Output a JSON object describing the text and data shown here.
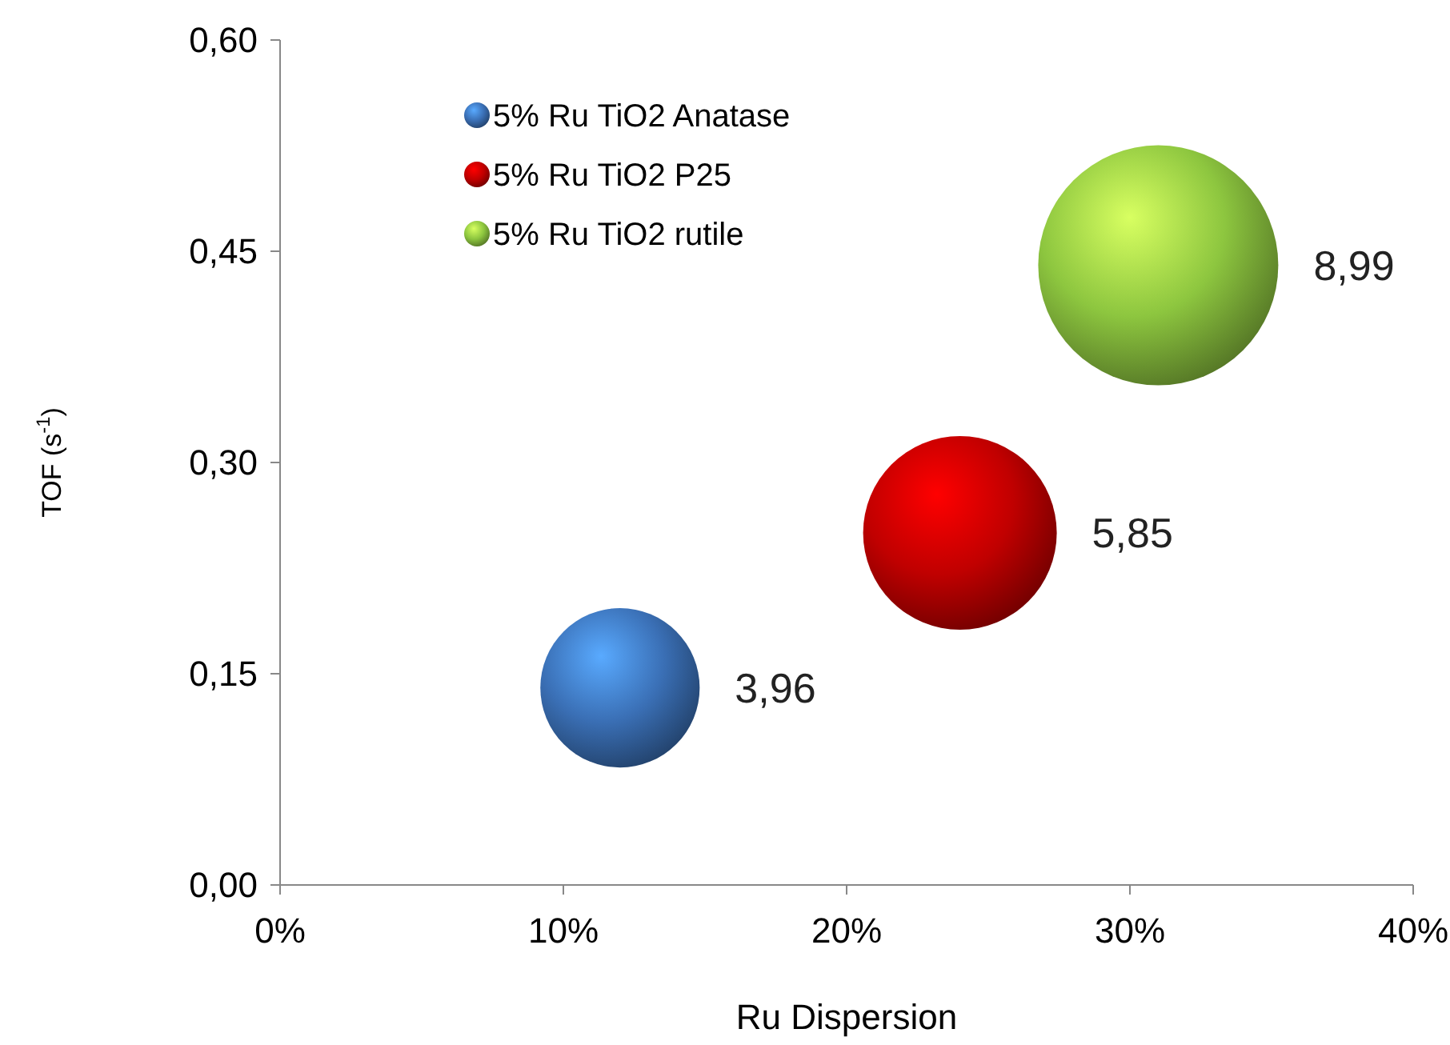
{
  "chart_data": {
    "type": "bubble",
    "xlabel": "Ru Dispersion",
    "ylabel": "TOF (s$^{-1}$)",
    "xlim": [
      0,
      40
    ],
    "xticks": [
      {
        "value": 0,
        "label": "0%"
      },
      {
        "value": 10,
        "label": "10%"
      },
      {
        "value": 20,
        "label": "20%"
      },
      {
        "value": 30,
        "label": "30%"
      },
      {
        "value": 40,
        "label": "40%"
      }
    ],
    "ylim": [
      0,
      0.6
    ],
    "yticks": [
      {
        "value": 0,
        "label": "0,00"
      },
      {
        "value": 0.15,
        "label": "0,15"
      },
      {
        "value": 0.3,
        "label": "0,30"
      },
      {
        "value": 0.45,
        "label": "0,45"
      },
      {
        "value": 0.6,
        "label": "0,60"
      }
    ],
    "legend": "top left",
    "grid": false,
    "series": [
      {
        "name": "5% Ru TiO2 Anatase",
        "color": "#3a6fb5",
        "x": [
          12
        ],
        "values": [
          0.14
        ],
        "sizes": [
          3.96
        ],
        "value_labels": [
          "3,96"
        ]
      },
      {
        "name": "5% Ru TiO2 P25",
        "color": "#c00000",
        "x": [
          24
        ],
        "values": [
          0.25
        ],
        "sizes": [
          5.85
        ],
        "value_labels": [
          "5,85"
        ]
      },
      {
        "name": "5% Ru TiO2 rutile",
        "color": "#8dc63f",
        "x": [
          31
        ],
        "values": [
          0.44
        ],
        "sizes": [
          8.99
        ],
        "value_labels": [
          "8,99"
        ]
      }
    ]
  }
}
